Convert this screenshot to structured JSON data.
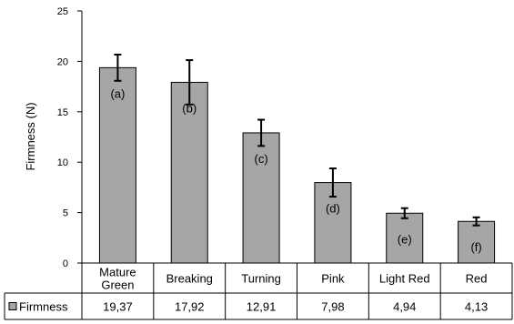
{
  "chart_data": {
    "type": "bar",
    "categories": [
      [
        "Mature",
        "Green"
      ],
      [
        "Breaking"
      ],
      [
        "Turning"
      ],
      [
        "Pink"
      ],
      [
        "Light Red"
      ],
      [
        "Red"
      ]
    ],
    "series": [
      {
        "name": "Firmness",
        "values": [
          19.37,
          17.92,
          12.91,
          7.98,
          4.94,
          4.13
        ],
        "value_labels": [
          "19,37",
          "17,92",
          "12,91",
          "7,98",
          "4,94",
          "4,13"
        ],
        "error": [
          1.3,
          2.2,
          1.3,
          1.4,
          0.5,
          0.4
        ],
        "annotations": [
          "(a)",
          "(b)",
          "(c)",
          "(d)",
          "(e)",
          "(f)"
        ]
      }
    ],
    "ylabel": "Firmness (N)",
    "ylim": [
      0,
      25
    ],
    "yticks": [
      0,
      5,
      10,
      15,
      20,
      25
    ],
    "grid": false,
    "legend": "data-table",
    "colors": {
      "bar": "#a6a6a6",
      "stroke": "#000000"
    }
  }
}
